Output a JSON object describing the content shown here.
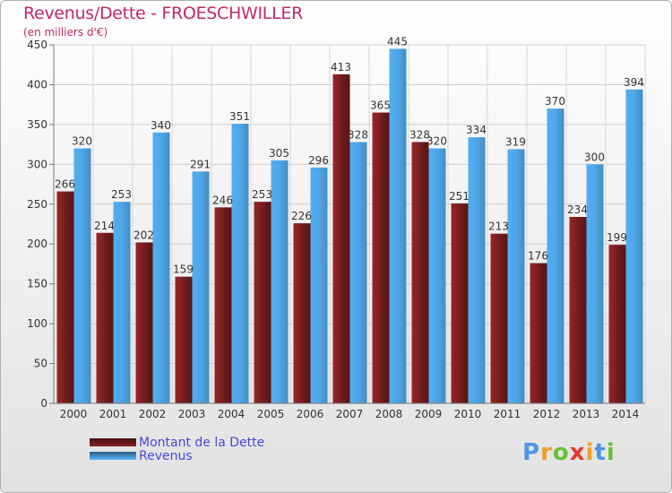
{
  "header": {
    "title": "Revenus/Dette - FROESCHWILLER",
    "subtitle": "(en milliers d'€)"
  },
  "chart_data": {
    "type": "bar",
    "categories": [
      "2000",
      "2001",
      "2002",
      "2003",
      "2004",
      "2005",
      "2006",
      "2007",
      "2008",
      "2009",
      "2010",
      "2011",
      "2012",
      "2013",
      "2014"
    ],
    "series": [
      {
        "name": "Montant de la Dette",
        "color": "#7a1e20",
        "values": [
          266,
          214,
          202,
          159,
          246,
          253,
          226,
          413,
          365,
          328,
          251,
          213,
          176,
          234,
          199
        ]
      },
      {
        "name": "Revenus",
        "color": "#4fa6e6",
        "values": [
          320,
          253,
          340,
          291,
          351,
          305,
          296,
          328,
          445,
          320,
          334,
          319,
          370,
          300,
          394
        ]
      }
    ],
    "data_labels": {
      "Montant de la Dette": [
        "266",
        "214",
        "202",
        "159",
        "246",
        "253",
        "226",
        "413",
        "365",
        "328",
        "251",
        "213",
        "176",
        "234",
        "199"
      ],
      "Revenus": [
        "320",
        "253",
        "340",
        "291",
        "351",
        "305",
        "296",
        "328",
        "445",
        "320",
        "334",
        "319",
        "370",
        "300",
        "394"
      ]
    },
    "yticks": [
      "0",
      "50",
      "100",
      "150",
      "200",
      "250",
      "300",
      "350",
      "400",
      "450"
    ],
    "ylim": [
      0,
      450
    ],
    "grid": true,
    "xlabel": "",
    "ylabel": ""
  },
  "legend": {
    "items": [
      {
        "label": "Montant de la Dette",
        "color": "#7a1e20"
      },
      {
        "label": "Revenus",
        "color": "#4fa6e6"
      }
    ]
  },
  "logo": {
    "letters": [
      "P",
      "r",
      "o",
      "x",
      "i",
      "t",
      "i"
    ],
    "colors": [
      "#4f95e4",
      "#f0a020",
      "#6bbf3a",
      "#e23a2e",
      "#f0a020",
      "#4f95e4",
      "#6bbf3a"
    ]
  }
}
